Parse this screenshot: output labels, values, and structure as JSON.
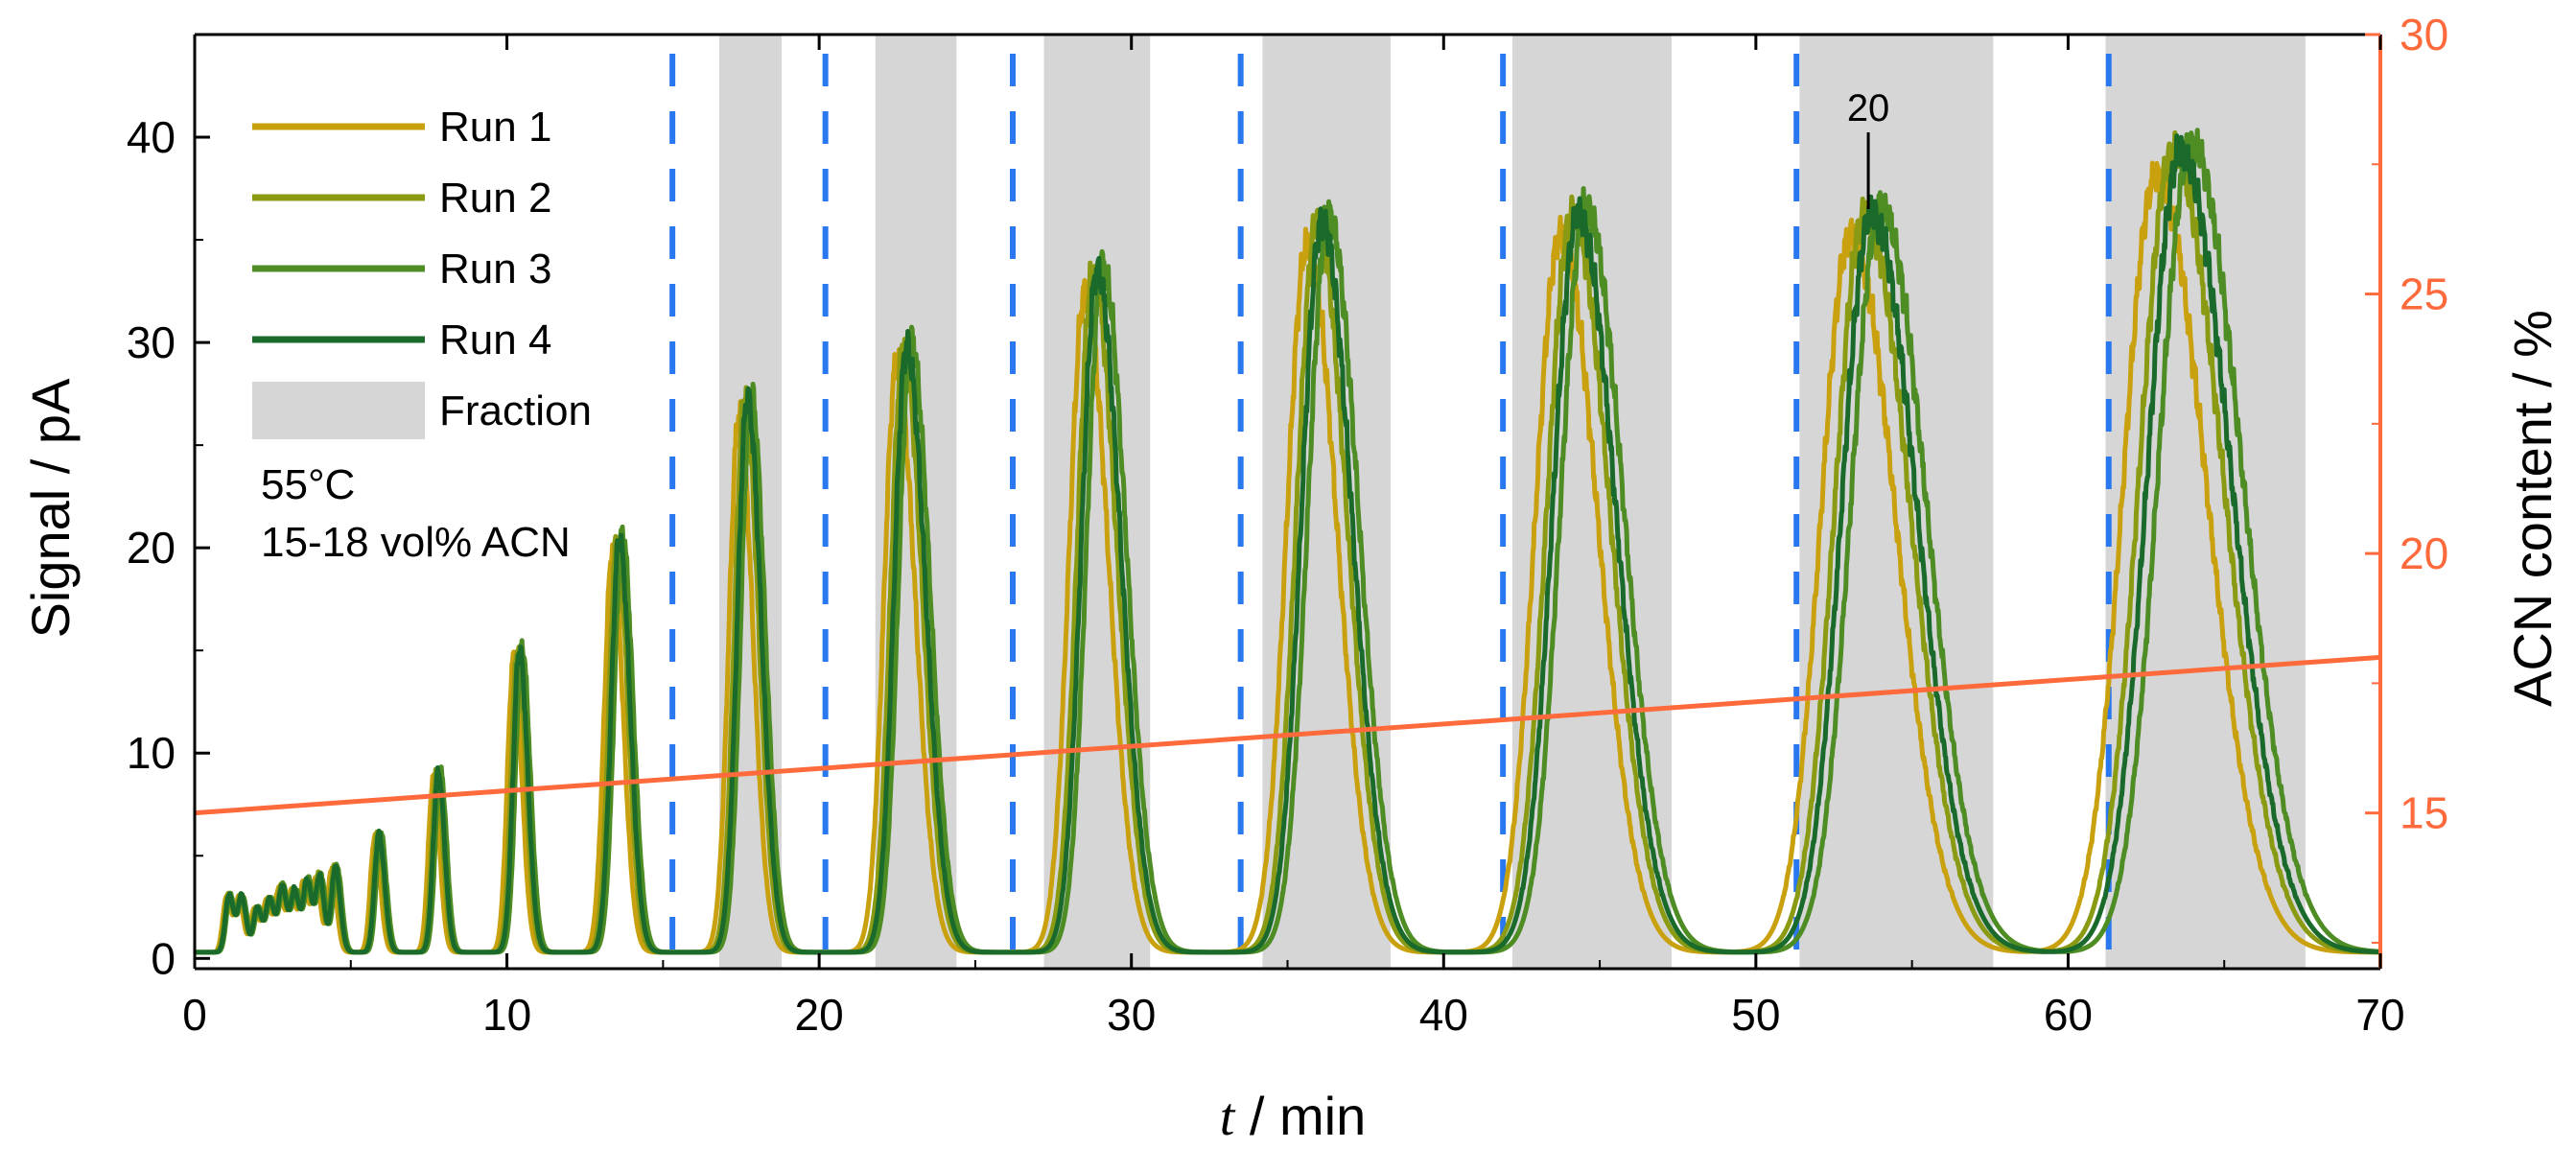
{
  "chart_data": {
    "type": "line",
    "x_label_italic": "t",
    "x_label_unit": " / min",
    "y_label": "Signal / pA",
    "y2_label": "ACN content / %",
    "xlim": [
      0,
      70
    ],
    "ylim": [
      -0.5,
      45
    ],
    "y2lim": [
      12,
      30
    ],
    "x_ticks": [
      0,
      10,
      20,
      30,
      40,
      50,
      60,
      70
    ],
    "y_ticks": [
      0,
      10,
      20,
      30,
      40
    ],
    "y2_ticks": [
      15,
      20,
      25,
      30
    ],
    "colors": {
      "run1": "#c9a10f",
      "run2": "#8a9a12",
      "run3": "#4e8c24",
      "run4": "#1a6b2b",
      "acn": "#ff6a3c",
      "fraction": "#d6d6d6",
      "cut": "#2a78f0",
      "y2axis": "#ff6a3c"
    },
    "legend": [
      {
        "label": "Run 1",
        "key": "run1",
        "kind": "line"
      },
      {
        "label": "Run 2",
        "key": "run2",
        "kind": "line"
      },
      {
        "label": "Run 3",
        "key": "run3",
        "kind": "line"
      },
      {
        "label": "Run 4",
        "key": "run4",
        "kind": "line"
      },
      {
        "label": "Fraction",
        "key": "fraction",
        "kind": "patch"
      }
    ],
    "conditions": [
      "55°C",
      "15-18 vol% ACN"
    ],
    "annotation": {
      "label": "20",
      "x": 53.6,
      "y": 36.5
    },
    "fraction_windows": [
      [
        16.8,
        18.8
      ],
      [
        21.8,
        24.4
      ],
      [
        27.2,
        30.6
      ],
      [
        34.2,
        38.3
      ],
      [
        42.2,
        47.3
      ],
      [
        51.4,
        57.6
      ],
      [
        61.2,
        67.6
      ]
    ],
    "cut_lines_x": [
      15.3,
      20.2,
      26.2,
      33.5,
      41.9,
      51.3,
      61.3
    ],
    "acn_line": {
      "x": [
        0,
        70
      ],
      "y": [
        15,
        18
      ]
    },
    "peaks": [
      {
        "center": 1.1,
        "height": 2.8,
        "sl": 0.12,
        "sr": 0.15
      },
      {
        "center": 1.5,
        "height": 2.7,
        "sl": 0.12,
        "sr": 0.15
      },
      {
        "center": 2.0,
        "height": 2.2,
        "sl": 0.12,
        "sr": 0.15
      },
      {
        "center": 2.4,
        "height": 2.6,
        "sl": 0.12,
        "sr": 0.15
      },
      {
        "center": 2.8,
        "height": 3.2,
        "sl": 0.12,
        "sr": 0.15
      },
      {
        "center": 3.2,
        "height": 3.0,
        "sl": 0.12,
        "sr": 0.15
      },
      {
        "center": 3.6,
        "height": 3.5,
        "sl": 0.12,
        "sr": 0.15
      },
      {
        "center": 4.0,
        "height": 3.7,
        "sl": 0.12,
        "sr": 0.15
      },
      {
        "center": 4.5,
        "height": 4.2,
        "sl": 0.12,
        "sr": 0.16
      },
      {
        "center": 5.9,
        "height": 5.8,
        "sl": 0.14,
        "sr": 0.18
      },
      {
        "center": 7.8,
        "height": 8.8,
        "sl": 0.16,
        "sr": 0.2
      },
      {
        "center": 10.4,
        "height": 14.8,
        "sl": 0.2,
        "sr": 0.26
      },
      {
        "center": 13.6,
        "height": 20.2,
        "sl": 0.26,
        "sr": 0.34
      },
      {
        "center": 17.7,
        "height": 27.0,
        "sl": 0.32,
        "sr": 0.44
      },
      {
        "center": 22.8,
        "height": 29.5,
        "sl": 0.4,
        "sr": 0.6
      },
      {
        "center": 28.9,
        "height": 33.2,
        "sl": 0.5,
        "sr": 0.75
      },
      {
        "center": 36.1,
        "height": 35.6,
        "sl": 0.65,
        "sr": 0.95
      },
      {
        "center": 44.3,
        "height": 36.0,
        "sl": 0.8,
        "sr": 1.2
      },
      {
        "center": 53.7,
        "height": 36.0,
        "sl": 0.95,
        "sr": 1.45
      },
      {
        "center": 63.6,
        "height": 39.0,
        "sl": 1.05,
        "sr": 1.6
      }
    ],
    "run_offsets": [
      -0.45,
      -0.15,
      0.2,
      0.0
    ],
    "run_height_scale": [
      0.97,
      1.0,
      1.01,
      1.0
    ],
    "baseline": 0.3
  }
}
